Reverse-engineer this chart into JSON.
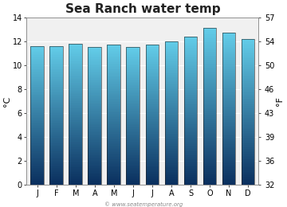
{
  "title": "Sea Ranch water temp",
  "months": [
    "J",
    "F",
    "M",
    "A",
    "M",
    "J",
    "J",
    "A",
    "S",
    "O",
    "N",
    "D"
  ],
  "values_c": [
    11.6,
    11.6,
    11.8,
    11.5,
    11.7,
    11.5,
    11.7,
    12.0,
    12.4,
    13.1,
    12.7,
    12.2
  ],
  "ylim_c": [
    0,
    14
  ],
  "yticks_c": [
    0,
    2,
    4,
    6,
    8,
    10,
    12,
    14
  ],
  "yticks_f": [
    32,
    36,
    39,
    43,
    46,
    50,
    54,
    57
  ],
  "ylabel_left": "°C",
  "ylabel_right": "°F",
  "bar_color_top": "#62cce8",
  "bar_color_bottom": "#0a2f5e",
  "background_color": "#ffffff",
  "plot_bg_color": "#f0f0f0",
  "grid_color": "#ffffff",
  "watermark": "© www.seatemperature.org",
  "title_fontsize": 11,
  "axis_fontsize": 7,
  "label_fontsize": 8,
  "bar_width": 0.7
}
